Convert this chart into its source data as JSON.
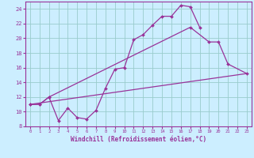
{
  "bg_color": "#cceeff",
  "grid_color": "#99cccc",
  "line_color": "#993399",
  "xlabel": "Windchill (Refroidissement éolien,°C)",
  "xlim": [
    -0.5,
    23.5
  ],
  "ylim": [
    8,
    25
  ],
  "yticks": [
    8,
    10,
    12,
    14,
    16,
    18,
    20,
    22,
    24
  ],
  "xticks": [
    0,
    1,
    2,
    3,
    4,
    5,
    6,
    7,
    8,
    9,
    10,
    11,
    12,
    13,
    14,
    15,
    16,
    17,
    18,
    19,
    20,
    21,
    22,
    23
  ],
  "line1_x": [
    0,
    1,
    2,
    3,
    4,
    5,
    6,
    7,
    8,
    9,
    10,
    11,
    12,
    13,
    14,
    15,
    16,
    17,
    18
  ],
  "line1_y": [
    11,
    11,
    12,
    8.8,
    10.5,
    9.2,
    9.0,
    10.2,
    13.2,
    15.8,
    16.0,
    19.8,
    20.5,
    21.8,
    23.0,
    23.0,
    24.5,
    24.3,
    21.5
  ],
  "line2_x": [
    0,
    1,
    2,
    17,
    19,
    20,
    21,
    23
  ],
  "line2_y": [
    11,
    11,
    12,
    21.5,
    19.5,
    19.5,
    16.5,
    15.2
  ],
  "line3_x": [
    0,
    23
  ],
  "line3_y": [
    11,
    15.2
  ],
  "figsize": [
    3.2,
    2.0
  ],
  "dpi": 100
}
